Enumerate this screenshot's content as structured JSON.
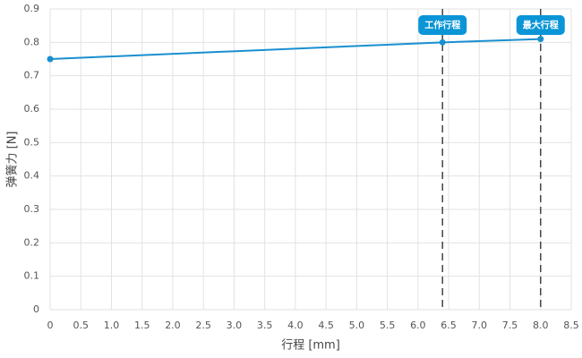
{
  "chart_data": {
    "type": "line",
    "x_label": "行程 [mm]",
    "y_label": "弹簧力 [N]",
    "x": [
      0,
      6.4,
      8.0
    ],
    "values": [
      0.75,
      0.8,
      0.81
    ],
    "color": "#1a8fcf",
    "xlim": [
      0,
      8.5
    ],
    "xticks": [
      0,
      0.5,
      {
        "value": 1,
        "label": "1.0"
      },
      1.5,
      {
        "value": 2,
        "label": "2.0"
      },
      2.5,
      {
        "value": 3,
        "label": "3.0"
      },
      3.5,
      {
        "value": 4,
        "label": "4.0"
      },
      4.5,
      {
        "value": 5,
        "label": "5.0"
      },
      5.5,
      {
        "value": 6,
        "label": "6.0"
      },
      6.5,
      {
        "value": 7,
        "label": "7.0"
      },
      7.5,
      {
        "value": 8,
        "label": "8.0"
      },
      8.5
    ],
    "ylim": [
      0,
      0.9
    ],
    "yticks": [
      0,
      0.1,
      0.2,
      0.3,
      0.4,
      0.5,
      0.6,
      0.7,
      0.8,
      0.9
    ],
    "grid": true,
    "annotations": [
      {
        "x": 6.4,
        "label": "工作行程"
      },
      {
        "x": 8.0,
        "label": "最大行程"
      }
    ],
    "annotation_color": "#0a95d6"
  }
}
